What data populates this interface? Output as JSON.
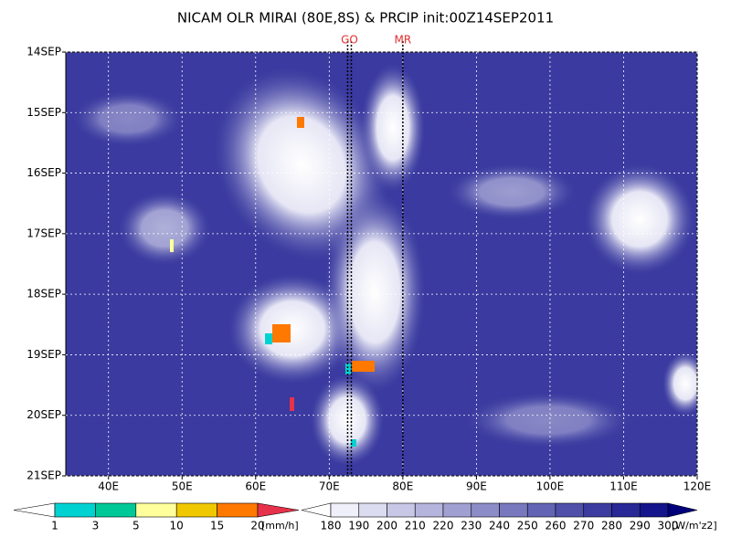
{
  "chart_data": {
    "type": "hovmoller",
    "title": "NICAM OLR MIRAI (80E,8S) & PRCIP init:00Z14SEP2011",
    "xlim": [
      34.2,
      120
    ],
    "xticks": [
      {
        "value": 40,
        "label": "40E"
      },
      {
        "value": 50,
        "label": "50E"
      },
      {
        "value": 60,
        "label": "60E"
      },
      {
        "value": 70,
        "label": "70E"
      },
      {
        "value": 80,
        "label": "80E"
      },
      {
        "value": 90,
        "label": "90E"
      },
      {
        "value": 100,
        "label": "100E"
      },
      {
        "value": 110,
        "label": "110E"
      },
      {
        "value": 120,
        "label": "120E"
      }
    ],
    "ylim": [
      14,
      21
    ],
    "yticks": [
      {
        "value": 14,
        "label": "14SEP"
      },
      {
        "value": 15,
        "label": "15SEP"
      },
      {
        "value": 16,
        "label": "16SEP"
      },
      {
        "value": 17,
        "label": "17SEP"
      },
      {
        "value": 18,
        "label": "18SEP"
      },
      {
        "value": 19,
        "label": "19SEP"
      },
      {
        "value": 20,
        "label": "20SEP"
      },
      {
        "value": 21,
        "label": "21SEP"
      }
    ],
    "grid": true,
    "markers": [
      {
        "label": "GO",
        "values": [
          72.5,
          73
        ]
      },
      {
        "label": "MR",
        "values": [
          80
        ]
      }
    ],
    "precip_scale": {
      "unit": "[mm/h]",
      "levels": [
        1,
        3,
        5,
        10,
        15,
        20
      ],
      "colors": [
        "#ffffff",
        "#00d2d2",
        "#00c896",
        "#ffff9b",
        "#f0c800",
        "#ff7800",
        "#e6324b"
      ]
    },
    "olr_scale": {
      "unit": "[W/m'z2]",
      "levels": [
        180,
        190,
        200,
        210,
        220,
        230,
        240,
        250,
        260,
        270,
        280,
        290,
        300
      ],
      "colors": [
        "#ffffff",
        "#f0f0fa",
        "#dcdcf0",
        "#c8c8e6",
        "#b4b4dc",
        "#a0a0d2",
        "#8c8cc8",
        "#7878be",
        "#6464b4",
        "#5050aa",
        "#3c3ca0",
        "#282896",
        "#14148c",
        "#00007a"
      ]
    }
  }
}
